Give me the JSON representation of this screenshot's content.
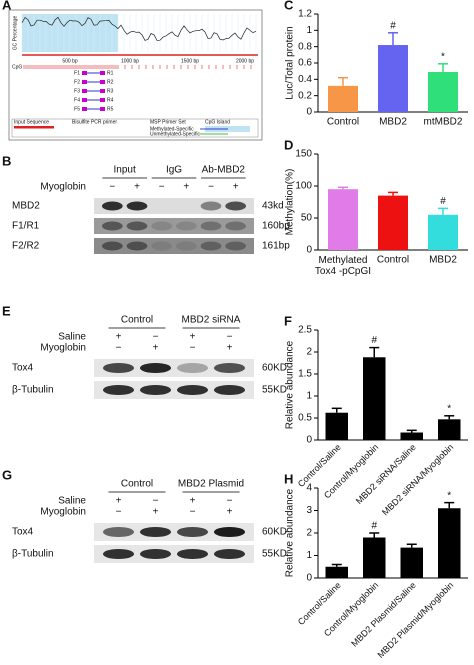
{
  "diagram_A": {
    "panel": "A",
    "y_label": "GC Percentage",
    "axis_labels": [
      "500 bp",
      "1000 bp",
      "1500 bp",
      "2000 bp"
    ],
    "track_label": "CpG",
    "primers": [
      {
        "forward": "F1",
        "reverse": "R1"
      },
      {
        "forward": "F2",
        "reverse": "R2"
      },
      {
        "forward": "F3",
        "reverse": "R3"
      },
      {
        "forward": "F4",
        "reverse": "R4"
      },
      {
        "forward": "F5",
        "reverse": "R5"
      }
    ],
    "legend": [
      "Input Sequence",
      "Bisulfite PCR primer",
      "MSP Primer Set",
      "CpG Island",
      "Methylated-Specific",
      "Unmethylated-Specific"
    ]
  },
  "blot_B": {
    "panel": "B",
    "groups": [
      "Input",
      "IgG",
      "Ab-MBD2"
    ],
    "conditions": [
      {
        "label": "Myoglobin",
        "signs": [
          "−",
          "+",
          "−",
          "+",
          "−",
          "+"
        ]
      }
    ],
    "rows": [
      {
        "label": "MBD2",
        "size": "43kd"
      },
      {
        "label": "F1/R1",
        "size": "160bp"
      },
      {
        "label": "F2/R2",
        "size": "161bp"
      }
    ]
  },
  "blot_E": {
    "panel": "E",
    "groups": [
      "Control",
      "MBD2 siRNA"
    ],
    "conditions": [
      {
        "label": "Saline",
        "signs": [
          "+",
          "−",
          "+",
          "−"
        ]
      },
      {
        "label": "Myoglobin",
        "signs": [
          "−",
          "+",
          "−",
          "+"
        ]
      }
    ],
    "rows": [
      {
        "label": "Tox4",
        "size": "60KD"
      },
      {
        "label": "β-Tubulin",
        "size": "55KD"
      }
    ]
  },
  "blot_G": {
    "panel": "G",
    "groups": [
      "Control",
      "MBD2 Plasmid"
    ],
    "conditions": [
      {
        "label": "Saline",
        "signs": [
          "+",
          "−",
          "+",
          "−"
        ]
      },
      {
        "label": "Myoglobin",
        "signs": [
          "−",
          "+",
          "−",
          "+"
        ]
      }
    ],
    "rows": [
      {
        "label": "Tox4",
        "size": "60KD"
      },
      {
        "label": "β-Tubulin",
        "size": "55KD"
      }
    ]
  },
  "chart_data": [
    {
      "type": "bar",
      "panel": "C",
      "y_label": "Luc/Total protein",
      "categories": [
        "Control",
        "MBD2",
        "mtMBD2"
      ],
      "values": [
        0.32,
        0.82,
        0.49
      ],
      "errors": [
        0.1,
        0.15,
        0.1
      ],
      "colors": [
        "#f79646",
        "#6464f0",
        "#2fe07a"
      ],
      "ylim": [
        0,
        1.2
      ],
      "yticks": [
        0,
        0.2,
        0.4,
        0.6,
        0.8,
        1,
        1.2
      ],
      "annotations": [
        {
          "category": "MBD2",
          "text": "#"
        },
        {
          "category": "mtMBD2",
          "text": "*"
        }
      ]
    },
    {
      "type": "bar",
      "panel": "D",
      "y_label": "Methylation(%)",
      "categories": [
        "Methylated\nTox4 -pCpGI",
        "Control",
        "MBD2"
      ],
      "values": [
        95,
        85,
        55
      ],
      "errors": [
        3,
        5,
        10
      ],
      "colors": [
        "#e07be8",
        "#ee1111",
        "#33dddd"
      ],
      "ylim": [
        0,
        150
      ],
      "yticks": [
        0,
        50,
        100,
        150
      ],
      "annotations": [
        {
          "category": "MBD2",
          "text": "#"
        }
      ]
    },
    {
      "type": "bar",
      "panel": "F",
      "y_label": "Relative abundance",
      "categories": [
        "Control/Saline",
        "Control/Myoglobin",
        "MBD2 siRNA/Saline",
        "MBD2 siRNA/Myoglobin"
      ],
      "values": [
        0.62,
        1.88,
        0.17,
        0.47
      ],
      "errors": [
        0.1,
        0.22,
        0.05,
        0.08
      ],
      "color": "#000000",
      "ylim": [
        0,
        2.5
      ],
      "yticks": [
        0,
        0.5,
        1,
        1.5,
        2,
        2.5
      ],
      "annotations": [
        {
          "category": "Control/Myoglobin",
          "text": "#"
        },
        {
          "category": "MBD2 siRNA/Myoglobin",
          "text": "*"
        }
      ]
    },
    {
      "type": "bar",
      "panel": "H",
      "y_label": "Relative abundance",
      "categories": [
        "Control/Saline",
        "Control/Myoglobin",
        "MBD2 Plasmid/Saline",
        "MBD2 Plasmid/Myoglobin"
      ],
      "values": [
        0.5,
        1.8,
        1.35,
        3.1
      ],
      "errors": [
        0.1,
        0.2,
        0.15,
        0.25
      ],
      "color": "#000000",
      "ylim": [
        0,
        4
      ],
      "yticks": [
        0,
        1,
        2,
        3,
        4
      ],
      "annotations": [
        {
          "category": "Control/Myoglobin",
          "text": "#"
        },
        {
          "category": "MBD2 Plasmid/Myoglobin",
          "text": "*"
        }
      ]
    }
  ]
}
